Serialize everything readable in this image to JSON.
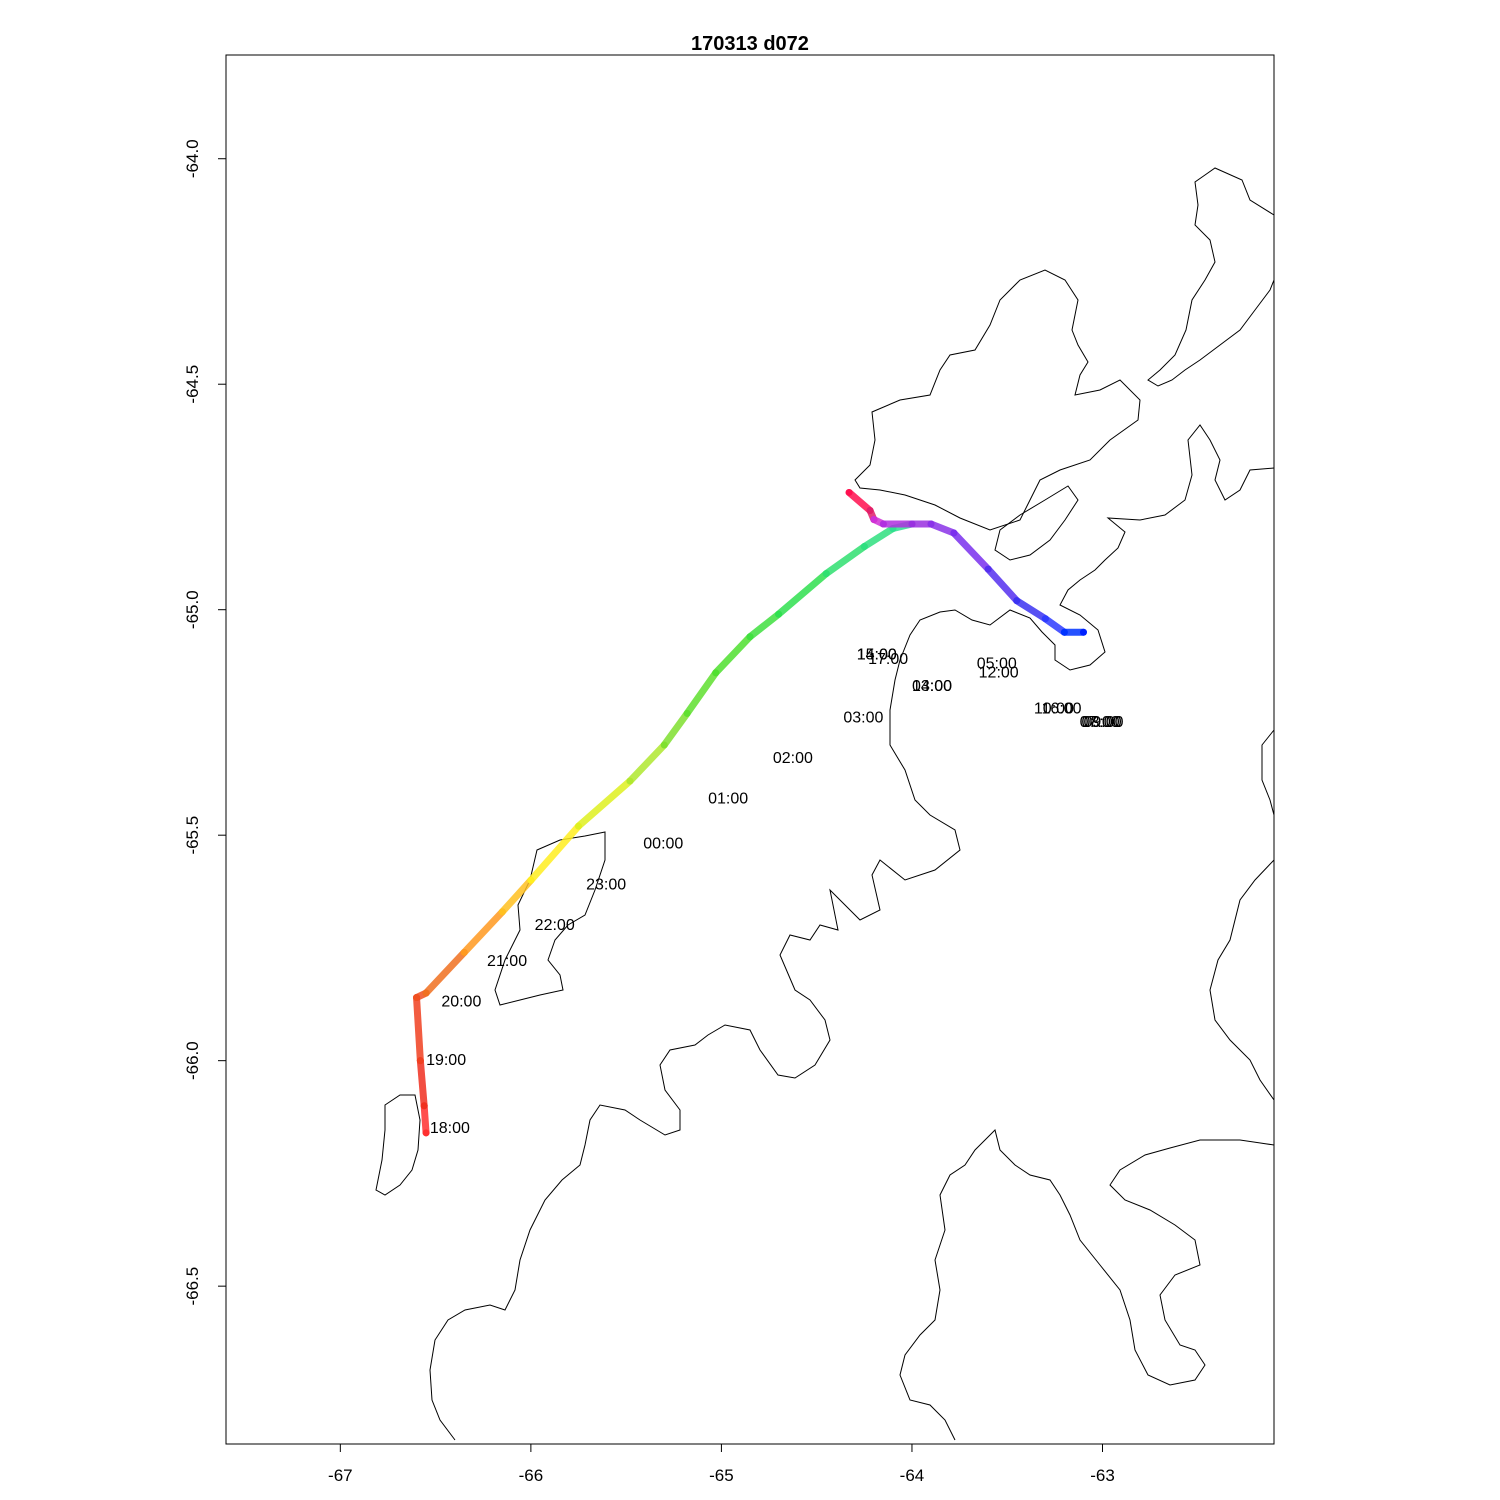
{
  "title": "170313   d072",
  "chart_data": {
    "type": "map-track",
    "xlim": [
      -67.6,
      -62.1
    ],
    "ylim": [
      -66.85,
      -63.77
    ],
    "x_ticks": [
      {
        "value": -67,
        "label": "-67"
      },
      {
        "value": -66,
        "label": "-66"
      },
      {
        "value": -65,
        "label": "-65"
      },
      {
        "value": -64,
        "label": "-64"
      },
      {
        "value": -63,
        "label": "-63"
      }
    ],
    "y_ticks": [
      {
        "value": -64.0,
        "label": "-64.0"
      },
      {
        "value": -64.5,
        "label": "-64.5"
      },
      {
        "value": -65.0,
        "label": "-65.0"
      },
      {
        "value": -65.5,
        "label": "-65.5"
      },
      {
        "value": -66.0,
        "label": "-66.0"
      },
      {
        "value": -66.5,
        "label": "-66.5"
      }
    ],
    "track": [
      {
        "x": -63.1,
        "y": -65.05,
        "color": "#0022ff"
      },
      {
        "x": -63.2,
        "y": -65.05,
        "color": "#0033ff"
      },
      {
        "x": -63.3,
        "y": -65.02,
        "color": "#2f3cff"
      },
      {
        "x": -63.45,
        "y": -64.98,
        "color": "#3b33f2"
      },
      {
        "x": -63.6,
        "y": -64.91,
        "color": "#5530ef"
      },
      {
        "x": -63.78,
        "y": -64.83,
        "color": "#7a30ee"
      },
      {
        "x": -63.9,
        "y": -64.81,
        "color": "#8a33e8"
      },
      {
        "x": -64.0,
        "y": -64.81,
        "color": "#9930e0"
      },
      {
        "x": -64.15,
        "y": -64.81,
        "color": "#b030e0"
      },
      {
        "x": -64.2,
        "y": -64.8,
        "color": "#cf30d8"
      },
      {
        "x": -64.22,
        "y": -64.78,
        "color": "#e0206a"
      },
      {
        "x": -64.33,
        "y": -64.74,
        "color": "#ff1050"
      }
    ],
    "track2": [
      {
        "x": -64.0,
        "y": -64.81,
        "color": "#30e0a0"
      },
      {
        "x": -64.1,
        "y": -64.82,
        "color": "#30e090"
      },
      {
        "x": -64.25,
        "y": -64.86,
        "color": "#30e080"
      },
      {
        "x": -64.45,
        "y": -64.92,
        "color": "#30e070"
      },
      {
        "x": -64.7,
        "y": -65.01,
        "color": "#30e050"
      },
      {
        "x": -64.85,
        "y": -65.06,
        "color": "#40e040"
      },
      {
        "x": -65.03,
        "y": -65.14,
        "color": "#50e030"
      },
      {
        "x": -65.18,
        "y": -65.23,
        "color": "#60e030"
      },
      {
        "x": -65.3,
        "y": -65.3,
        "color": "#80e030"
      },
      {
        "x": -65.48,
        "y": -65.38,
        "color": "#b0e830"
      },
      {
        "x": -65.75,
        "y": -65.48,
        "color": "#dff020"
      },
      {
        "x": -66.0,
        "y": -65.6,
        "color": "#ffee20"
      },
      {
        "x": -66.15,
        "y": -65.67,
        "color": "#ffc020"
      },
      {
        "x": -66.35,
        "y": -65.76,
        "color": "#ff9a20"
      },
      {
        "x": -66.55,
        "y": -65.85,
        "color": "#f07020"
      },
      {
        "x": -66.6,
        "y": -65.86,
        "color": "#f05020"
      },
      {
        "x": -66.58,
        "y": -66.0,
        "color": "#f04020"
      },
      {
        "x": -66.56,
        "y": -66.1,
        "color": "#f03020"
      },
      {
        "x": -66.55,
        "y": -66.16,
        "color": "#ff3030"
      }
    ],
    "time_labels": [
      {
        "x": -66.53,
        "y": -66.16,
        "label": "18:00"
      },
      {
        "x": -66.55,
        "y": -66.01,
        "label": "19:00"
      },
      {
        "x": -66.47,
        "y": -65.88,
        "label": "20:00"
      },
      {
        "x": -66.23,
        "y": -65.79,
        "label": "21:00"
      },
      {
        "x": -65.98,
        "y": -65.71,
        "label": "22:00"
      },
      {
        "x": -65.71,
        "y": -65.62,
        "label": "23:00"
      },
      {
        "x": -65.41,
        "y": -65.53,
        "label": "00:00"
      },
      {
        "x": -65.07,
        "y": -65.43,
        "label": "01:00"
      },
      {
        "x": -64.73,
        "y": -65.34,
        "label": "02:00"
      },
      {
        "x": -64.36,
        "y": -65.25,
        "label": "03:00"
      },
      {
        "x": -64.0,
        "y": -65.18,
        "label": "04:00"
      },
      {
        "x": -63.66,
        "y": -65.13,
        "label": "05:00"
      },
      {
        "x": -63.65,
        "y": -65.15,
        "label": "12:00"
      },
      {
        "x": -64.0,
        "y": -65.18,
        "label": "13:00"
      },
      {
        "x": -63.36,
        "y": -65.23,
        "label": "10:00"
      },
      {
        "x": -63.32,
        "y": -65.23,
        "label": "16:00"
      },
      {
        "x": -63.12,
        "y": -65.26,
        "label": "07:00"
      },
      {
        "x": -63.11,
        "y": -65.26,
        "label": "08:00"
      },
      {
        "x": -63.1,
        "y": -65.26,
        "label": "09:00"
      },
      {
        "x": -64.29,
        "y": -65.11,
        "label": "14:00"
      },
      {
        "x": -64.29,
        "y": -65.11,
        "label": "15:00"
      },
      {
        "x": -64.23,
        "y": -65.12,
        "label": "17:00"
      }
    ]
  }
}
